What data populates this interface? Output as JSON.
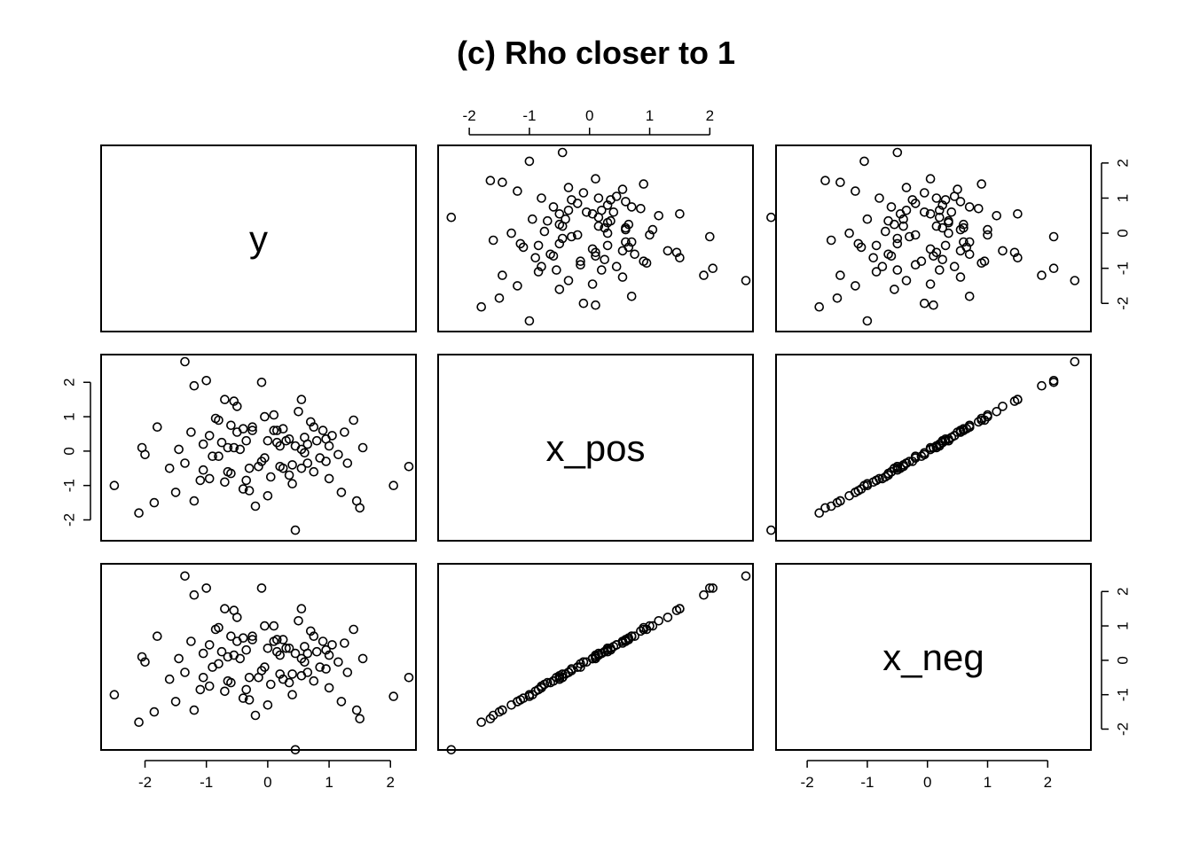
{
  "chart_data": {
    "type": "scatter",
    "plot_kind": "scatterplot-matrix",
    "title": "(c) Rho closer to 1",
    "variables": [
      "y",
      "x_pos",
      "x_neg"
    ],
    "axis_ranges": {
      "y": [
        -2.6,
        2.3
      ],
      "x_pos": [
        -2.4,
        2.6
      ],
      "x_neg": [
        -2.4,
        2.6
      ]
    },
    "ticks": {
      "y": [
        -2,
        -1,
        0,
        1,
        2
      ],
      "x_pos": [
        -2,
        -1,
        0,
        1,
        2
      ],
      "x_neg": [
        -2,
        -1,
        0,
        1,
        2
      ]
    },
    "grid": false,
    "legend": "none",
    "points": [
      {
        "y": 2.05,
        "x_pos": -1.0,
        "x_neg": -1.05
      },
      {
        "y": 2.3,
        "x_pos": -0.45,
        "x_neg": -0.5
      },
      {
        "y": -1.0,
        "x_pos": 2.05,
        "x_neg": 2.1
      },
      {
        "y": -1.35,
        "x_pos": 2.6,
        "x_neg": 2.45
      },
      {
        "y": -2.1,
        "x_pos": -1.8,
        "x_neg": -1.8
      },
      {
        "y": -2.5,
        "x_pos": -1.0,
        "x_neg": -1.0
      },
      {
        "y": -0.1,
        "x_pos": 2.0,
        "x_neg": 2.1
      },
      {
        "y": -1.2,
        "x_pos": 1.9,
        "x_neg": 1.9
      },
      {
        "y": -0.7,
        "x_pos": 1.5,
        "x_neg": 1.5
      },
      {
        "y": 0.55,
        "x_pos": 1.5,
        "x_neg": 1.5
      },
      {
        "y": -1.85,
        "x_pos": -1.5,
        "x_neg": -1.5
      },
      {
        "y": -2.0,
        "x_pos": -0.1,
        "x_neg": -0.05
      },
      {
        "y": -2.05,
        "x_pos": 0.1,
        "x_neg": 0.1
      },
      {
        "y": 1.5,
        "x_pos": -1.65,
        "x_neg": -1.7
      },
      {
        "y": 1.45,
        "x_pos": -1.45,
        "x_neg": -1.45
      },
      {
        "y": -1.8,
        "x_pos": 0.7,
        "x_neg": 0.7
      },
      {
        "y": -1.6,
        "x_pos": -0.5,
        "x_neg": -0.55
      },
      {
        "y": 0.45,
        "x_pos": -2.3,
        "x_neg": -2.6
      },
      {
        "y": 1.55,
        "x_pos": 0.1,
        "x_neg": 0.05
      },
      {
        "y": 1.0,
        "x_pos": -0.8,
        "x_neg": -0.8
      },
      {
        "y": 1.25,
        "x_pos": 0.55,
        "x_neg": 0.5
      },
      {
        "y": -1.45,
        "x_pos": 0.05,
        "x_neg": 0.05
      },
      {
        "y": 0.25,
        "x_pos": -0.5,
        "x_neg": -0.55
      },
      {
        "y": -0.55,
        "x_pos": 0.1,
        "x_neg": 0.15
      },
      {
        "y": -0.35,
        "x_pos": 0.3,
        "x_neg": 0.3
      },
      {
        "y": 0.6,
        "x_pos": 0.4,
        "x_neg": 0.4
      },
      {
        "y": -0.85,
        "x_pos": 0.95,
        "x_neg": 0.9
      },
      {
        "y": 0.0,
        "x_pos": -1.3,
        "x_neg": -1.3
      },
      {
        "y": 0.1,
        "x_pos": 1.05,
        "x_neg": 1.0
      },
      {
        "y": -1.1,
        "x_pos": -0.85,
        "x_neg": -0.85
      },
      {
        "y": 0.85,
        "x_pos": -0.2,
        "x_neg": -0.2
      },
      {
        "y": -0.3,
        "x_pos": -1.15,
        "x_neg": -1.15
      },
      {
        "y": 1.05,
        "x_pos": 0.45,
        "x_neg": 0.45
      },
      {
        "y": -0.65,
        "x_pos": -0.6,
        "x_neg": -0.6
      },
      {
        "y": 0.75,
        "x_pos": 0.7,
        "x_neg": 0.7
      },
      {
        "y": -1.35,
        "x_pos": -0.35,
        "x_neg": -0.35
      },
      {
        "y": 0.2,
        "x_pos": 0.15,
        "x_neg": 0.15
      },
      {
        "y": -0.25,
        "x_pos": 0.6,
        "x_neg": 0.6
      },
      {
        "y": 0.35,
        "x_pos": -0.7,
        "x_neg": -0.65
      },
      {
        "y": 1.3,
        "x_pos": -0.35,
        "x_neg": -0.35
      },
      {
        "y": -0.4,
        "x_pos": -1.1,
        "x_neg": -1.1
      },
      {
        "y": 0.65,
        "x_pos": 0.2,
        "x_neg": 0.2
      },
      {
        "y": -0.75,
        "x_pos": 0.25,
        "x_neg": 0.25
      },
      {
        "y": 0.95,
        "x_pos": -0.3,
        "x_neg": -0.25
      },
      {
        "y": -0.5,
        "x_pos": 1.3,
        "x_neg": 1.25
      },
      {
        "y": 0.4,
        "x_pos": -0.95,
        "x_neg": -1.0
      },
      {
        "y": -1.05,
        "x_pos": -0.55,
        "x_neg": -0.5
      },
      {
        "y": 0.15,
        "x_pos": 0.6,
        "x_neg": 0.6
      },
      {
        "y": -0.15,
        "x_pos": -0.45,
        "x_neg": -0.5
      },
      {
        "y": 1.15,
        "x_pos": -0.1,
        "x_neg": -0.05
      },
      {
        "y": -0.6,
        "x_pos": 0.75,
        "x_neg": 0.7
      },
      {
        "y": 0.5,
        "x_pos": 1.15,
        "x_neg": 1.15
      },
      {
        "y": -0.95,
        "x_pos": 0.45,
        "x_neg": 0.45
      },
      {
        "y": 0.05,
        "x_pos": -0.75,
        "x_neg": -0.7
      },
      {
        "y": -0.45,
        "x_pos": 0.05,
        "x_neg": 0.05
      },
      {
        "y": 0.7,
        "x_pos": 0.85,
        "x_neg": 0.85
      },
      {
        "y": -0.2,
        "x_pos": -1.6,
        "x_neg": -1.6
      },
      {
        "y": 1.2,
        "x_pos": -1.2,
        "x_neg": -1.2
      },
      {
        "y": -0.8,
        "x_pos": -0.15,
        "x_neg": -0.1
      },
      {
        "y": 0.3,
        "x_pos": 0.3,
        "x_neg": 0.35
      },
      {
        "y": -1.25,
        "x_pos": 0.55,
        "x_neg": 0.55
      },
      {
        "y": 0.9,
        "x_pos": 0.6,
        "x_neg": 0.55
      },
      {
        "y": -0.05,
        "x_pos": 1.0,
        "x_neg": 1.0
      },
      {
        "y": 0.55,
        "x_pos": -0.5,
        "x_neg": -0.45
      },
      {
        "y": -0.7,
        "x_pos": -0.9,
        "x_neg": -0.9
      },
      {
        "y": 1.4,
        "x_pos": 0.9,
        "x_neg": 0.9
      },
      {
        "y": -0.9,
        "x_pos": -0.15,
        "x_neg": -0.2
      },
      {
        "y": 0.1,
        "x_pos": 0.6,
        "x_neg": 0.55
      },
      {
        "y": -0.35,
        "x_pos": -0.85,
        "x_neg": -0.85
      },
      {
        "y": 0.8,
        "x_pos": 0.3,
        "x_neg": 0.25
      },
      {
        "y": -1.5,
        "x_pos": -1.2,
        "x_neg": -1.2
      },
      {
        "y": 0.0,
        "x_pos": 0.3,
        "x_neg": 0.35
      },
      {
        "y": -0.55,
        "x_pos": 1.45,
        "x_neg": 1.45
      },
      {
        "y": 0.45,
        "x_pos": 0.15,
        "x_neg": 0.2
      },
      {
        "y": -0.1,
        "x_pos": -0.3,
        "x_neg": -0.3
      },
      {
        "y": 0.6,
        "x_pos": -0.05,
        "x_neg": -0.05
      },
      {
        "y": -0.65,
        "x_pos": 0.1,
        "x_neg": 0.1
      },
      {
        "y": 0.25,
        "x_pos": 0.65,
        "x_neg": 0.6
      },
      {
        "y": -0.3,
        "x_pos": -0.5,
        "x_neg": -0.5
      },
      {
        "y": 1.0,
        "x_pos": 0.15,
        "x_neg": 0.15
      },
      {
        "y": -0.8,
        "x_pos": 0.9,
        "x_neg": 0.95
      },
      {
        "y": 0.2,
        "x_pos": -0.45,
        "x_neg": -0.4
      },
      {
        "y": -0.5,
        "x_pos": 0.55,
        "x_neg": 0.55
      },
      {
        "y": 0.75,
        "x_pos": -0.6,
        "x_neg": -0.6
      },
      {
        "y": -1.2,
        "x_pos": -1.45,
        "x_neg": -1.45
      },
      {
        "y": 0.35,
        "x_pos": 0.35,
        "x_neg": 0.35
      },
      {
        "y": -0.25,
        "x_pos": 0.7,
        "x_neg": 0.7
      },
      {
        "y": 0.65,
        "x_pos": -0.35,
        "x_neg": -0.35
      },
      {
        "y": -0.4,
        "x_pos": 0.65,
        "x_neg": 0.65
      },
      {
        "y": 0.15,
        "x_pos": 0.25,
        "x_neg": 0.25
      },
      {
        "y": -0.95,
        "x_pos": -0.8,
        "x_neg": -0.75
      },
      {
        "y": 0.55,
        "x_pos": 0.05,
        "x_neg": 0.05
      },
      {
        "y": -0.05,
        "x_pos": -0.2,
        "x_neg": -0.2
      },
      {
        "y": 0.95,
        "x_pos": 0.35,
        "x_neg": 0.3
      },
      {
        "y": -0.6,
        "x_pos": -0.65,
        "x_neg": -0.65
      },
      {
        "y": 0.4,
        "x_pos": -0.4,
        "x_neg": -0.4
      },
      {
        "y": -1.05,
        "x_pos": 0.2,
        "x_neg": 0.2
      }
    ]
  }
}
